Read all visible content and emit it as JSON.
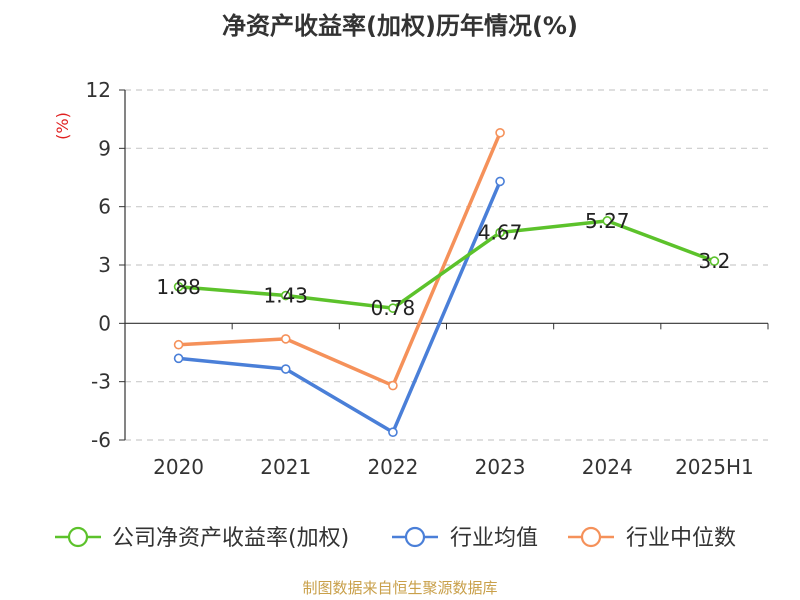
{
  "chart_data": {
    "type": "line",
    "title": "净资产收益率(加权)历年情况(%)",
    "ylabel": "(%)",
    "categories": [
      "2020",
      "2021",
      "2022",
      "2023",
      "2024",
      "2025H1"
    ],
    "ylim": [
      -6,
      12
    ],
    "yticks": [
      -6,
      -3,
      0,
      3,
      6,
      9,
      12
    ],
    "ytick_labels": [
      "-6",
      "-3",
      "0",
      "3",
      "6",
      "9",
      "12"
    ],
    "grid": true,
    "legend_position": "bottom",
    "series": [
      {
        "name": "公司净资产收益率(加权)",
        "color": "#5cc22b",
        "values": [
          1.88,
          1.43,
          0.78,
          4.67,
          5.27,
          3.2
        ],
        "labels": [
          "1.88",
          "1.43",
          "0.78",
          "4.67",
          "5.27",
          "3.2"
        ]
      },
      {
        "name": "行业均值",
        "color": "#4a7fd8",
        "values": [
          -1.8,
          -2.35,
          -5.6,
          7.3,
          null,
          null
        ]
      },
      {
        "name": "行业中位数",
        "color": "#f5915a",
        "values": [
          -1.1,
          -0.8,
          -3.2,
          9.8,
          null,
          null
        ]
      }
    ]
  },
  "source": "制图数据来自恒生聚源数据库"
}
